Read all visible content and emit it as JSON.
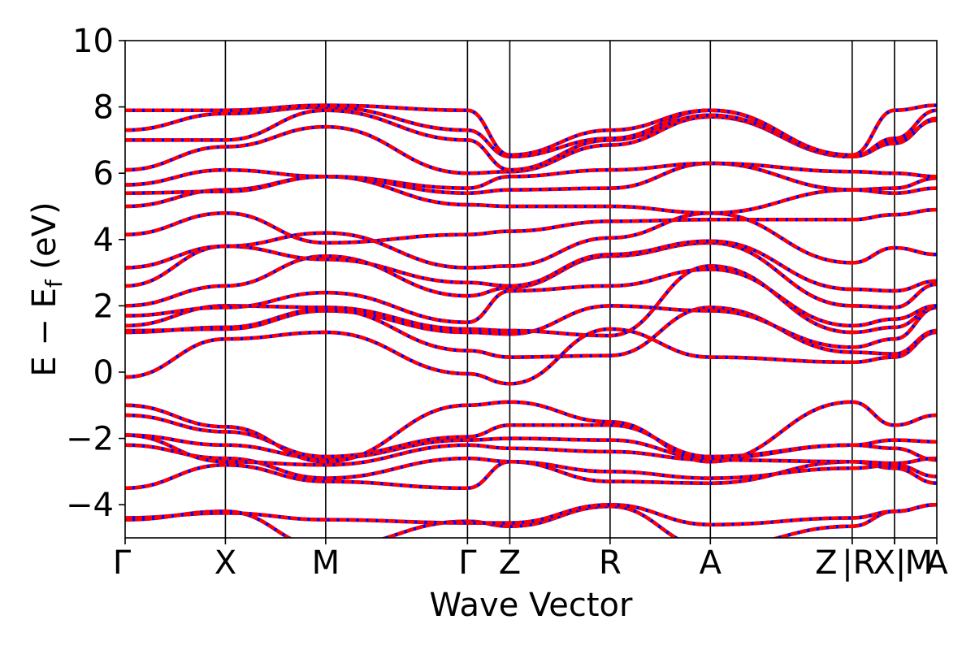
{
  "chart_data": {
    "type": "line",
    "title": "",
    "xlabel": "Wave Vector",
    "ylabel_main": "E − E",
    "ylabel_sub": "f",
    "ylabel_unit": " (eV)",
    "ylim": [
      -5,
      10
    ],
    "yticks": [
      -4,
      -2,
      0,
      2,
      4,
      6,
      8,
      10
    ],
    "ytick_labels": [
      "−4",
      "−2",
      "0",
      "2",
      "4",
      "6",
      "8",
      "10"
    ],
    "kpath": [
      {
        "label": "Γ",
        "x": 0.0
      },
      {
        "label": "X",
        "x": 1.0
      },
      {
        "label": "M",
        "x": 2.0
      },
      {
        "label": "Γ",
        "x": 3.414
      },
      {
        "label": "Z",
        "x": 3.836
      },
      {
        "label": "R",
        "x": 4.836
      },
      {
        "label": "A",
        "x": 5.836
      },
      {
        "label": "Z",
        "x": 7.25
      },
      {
        "label": "|R",
        "x": 7.25
      },
      {
        "label": "X|",
        "x": 7.672
      },
      {
        "label": "M",
        "x": 7.672
      },
      {
        "label": "A",
        "x": 8.094
      }
    ],
    "vlines": [
      1.0,
      2.0,
      3.414,
      3.836,
      4.836,
      5.836,
      7.25,
      7.672
    ],
    "segments": [
      {
        "from": "Γ",
        "to": "X",
        "x": [
          0,
          1
        ]
      },
      {
        "from": "X",
        "to": "M",
        "x": [
          1,
          2
        ]
      },
      {
        "from": "M",
        "to": "Γ",
        "x": [
          2,
          3.414
        ]
      },
      {
        "from": "Γ",
        "to": "Z",
        "x": [
          3.414,
          3.836
        ]
      },
      {
        "from": "Z",
        "to": "R",
        "x": [
          3.836,
          4.836
        ]
      },
      {
        "from": "R",
        "to": "A",
        "x": [
          4.836,
          5.836
        ]
      },
      {
        "from": "A",
        "to": "Z",
        "x": [
          5.836,
          7.25
        ]
      },
      {
        "from": "R",
        "to": "X",
        "x": [
          7.25,
          7.672
        ]
      },
      {
        "from": "M",
        "to": "A",
        "x": [
          7.672,
          8.094
        ]
      }
    ],
    "bands": [
      [
        -4.45,
        -4.2,
        -5.3,
        -4.5,
        -4.65,
        -4.05,
        -5.3,
        -4.65,
        -4.2,
        -4.0,
        -4.2
      ],
      [
        -4.4,
        -4.25,
        -4.45,
        -4.55,
        -4.55,
        -4.0,
        -4.6,
        -4.4,
        -4.2,
        -4.0,
        -4.2
      ],
      [
        -3.5,
        -2.8,
        -3.3,
        -3.5,
        -2.7,
        -3.3,
        -3.35,
        -2.7,
        -2.9,
        -3.35,
        -3.35
      ],
      [
        -2.2,
        -2.6,
        -3.2,
        -2.6,
        -2.7,
        -3.0,
        -3.2,
        -2.9,
        -2.8,
        -3.15,
        -3.15
      ],
      [
        -1.9,
        -2.7,
        -2.8,
        -2.2,
        -2.3,
        -2.4,
        -2.65,
        -2.7,
        -2.75,
        -2.6,
        -2.6
      ],
      [
        -1.9,
        -2.2,
        -2.6,
        -2.05,
        -2.0,
        -2.05,
        -2.6,
        -2.2,
        -2.3,
        -2.65,
        -2.65
      ],
      [
        -1.3,
        -1.8,
        -2.55,
        -1.95,
        -1.6,
        -1.6,
        -2.55,
        -2.2,
        -2.05,
        -2.1,
        -2.6
      ],
      [
        -1.0,
        -1.65,
        -2.7,
        -1.0,
        -0.9,
        -1.5,
        -2.7,
        -0.9,
        -1.6,
        -1.3,
        -2.6
      ],
      [
        -0.15,
        1.0,
        1.2,
        -0.05,
        -0.35,
        1.3,
        0.45,
        0.3,
        0.45,
        1.2,
        0.45
      ],
      [
        1.2,
        1.35,
        1.9,
        0.65,
        0.45,
        0.5,
        1.95,
        0.6,
        0.55,
        1.25,
        0.45
      ],
      [
        1.25,
        1.3,
        1.85,
        1.2,
        1.15,
        2.0,
        1.85,
        0.75,
        1.0,
        1.95,
        1.9
      ],
      [
        1.4,
        2.0,
        1.95,
        1.3,
        1.25,
        1.1,
        3.2,
        1.2,
        1.35,
        1.95,
        2.3
      ],
      [
        1.7,
        1.95,
        2.4,
        1.5,
        2.45,
        2.6,
        3.1,
        1.4,
        1.6,
        2.0,
        3.15
      ],
      [
        2.0,
        2.6,
        3.5,
        2.3,
        2.55,
        3.5,
        3.9,
        2.0,
        1.95,
        2.65,
        3.15
      ],
      [
        2.6,
        3.8,
        3.4,
        2.7,
        2.6,
        3.55,
        3.95,
        2.5,
        2.45,
        2.75,
        3.9
      ],
      [
        3.15,
        3.8,
        4.2,
        3.15,
        3.2,
        4.05,
        4.8,
        3.3,
        3.75,
        3.55,
        4.15
      ],
      [
        4.15,
        4.8,
        3.9,
        4.15,
        4.25,
        4.55,
        4.6,
        4.6,
        4.75,
        4.9,
        4.85
      ],
      [
        5.0,
        5.5,
        5.9,
        5.05,
        5.0,
        5.0,
        4.8,
        5.5,
        5.4,
        5.55,
        5.45
      ],
      [
        5.4,
        5.45,
        5.9,
        5.4,
        5.5,
        5.55,
        6.3,
        5.5,
        5.55,
        5.85,
        6.3
      ],
      [
        5.65,
        6.1,
        5.9,
        5.55,
        5.9,
        6.1,
        6.3,
        6.05,
        6.0,
        5.9,
        6.3
      ],
      [
        6.1,
        6.8,
        7.4,
        6.0,
        6.05,
        6.85,
        7.7,
        6.5,
        6.9,
        7.65,
        7.75
      ],
      [
        7.0,
        7.0,
        7.9,
        7.0,
        6.1,
        7.0,
        7.75,
        6.5,
        7.0,
        7.6,
        7.75
      ],
      [
        7.3,
        7.8,
        8.0,
        7.3,
        6.5,
        7.05,
        7.9,
        6.5,
        7.05,
        7.9,
        7.9
      ],
      [
        7.9,
        7.9,
        8.05,
        7.9,
        6.55,
        7.3,
        7.9,
        6.55,
        7.9,
        8.05,
        7.9
      ]
    ],
    "series_colors": {
      "band": "#ff0000",
      "overlay": "#0000ff",
      "axis": "#000000"
    }
  }
}
